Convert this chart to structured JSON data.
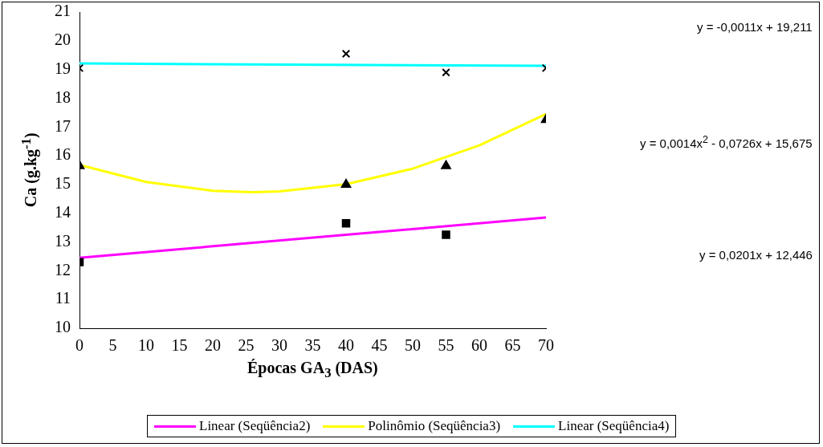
{
  "chart_data": {
    "type": "scatter",
    "xlabel": "Épocas GA$_{3}$ (DAS)",
    "ylabel": "Ca (g.kg$^{-1}$)",
    "xlim": [
      0,
      70
    ],
    "xticks": [
      0,
      5,
      10,
      15,
      20,
      25,
      30,
      35,
      40,
      45,
      50,
      55,
      60,
      65,
      70
    ],
    "ylim": [
      10,
      21
    ],
    "yticks": [
      10,
      11,
      12,
      13,
      14,
      15,
      16,
      17,
      18,
      19,
      20,
      21
    ],
    "grid": false,
    "legend": "bottom",
    "series": [
      {
        "color": "#000000",
        "marker": "square",
        "x": [
          0,
          40,
          55
        ],
        "values": [
          12.3,
          13.65,
          13.25
        ]
      },
      {
        "color": "#000000",
        "marker": "triangle",
        "x": [
          0,
          40,
          55,
          70
        ],
        "values": [
          15.65,
          15.0,
          15.65,
          17.25
        ]
      },
      {
        "color": "#000000",
        "marker": "cross",
        "x": [
          0,
          40,
          55,
          70
        ],
        "values": [
          19.05,
          19.55,
          18.9,
          19.05
        ]
      },
      {
        "type": "line",
        "name": "Linear (Seqüência2)",
        "color": "#ff00ff",
        "x": [
          0,
          70
        ],
        "values": [
          12.45,
          13.85
        ]
      },
      {
        "type": "line",
        "name": "Polinômio (Seqüência3)",
        "color": "#ffff00",
        "x": [
          0,
          10,
          20,
          26,
          30,
          40,
          50,
          60,
          70
        ],
        "values": [
          15.68,
          15.09,
          14.78,
          14.73,
          14.76,
          15.01,
          15.55,
          16.36,
          17.45
        ]
      },
      {
        "type": "line",
        "name": "Linear (Seqüência4)",
        "color": "#00ffff",
        "x": [
          0,
          70
        ],
        "values": [
          19.21,
          19.13
        ]
      }
    ],
    "annotations": [
      "y = -0,0011x + 19,211",
      "y = 0,0014x$^{2}$ - 0,0726x + 15,675",
      "y = 0,0201x + 12,446"
    ]
  }
}
